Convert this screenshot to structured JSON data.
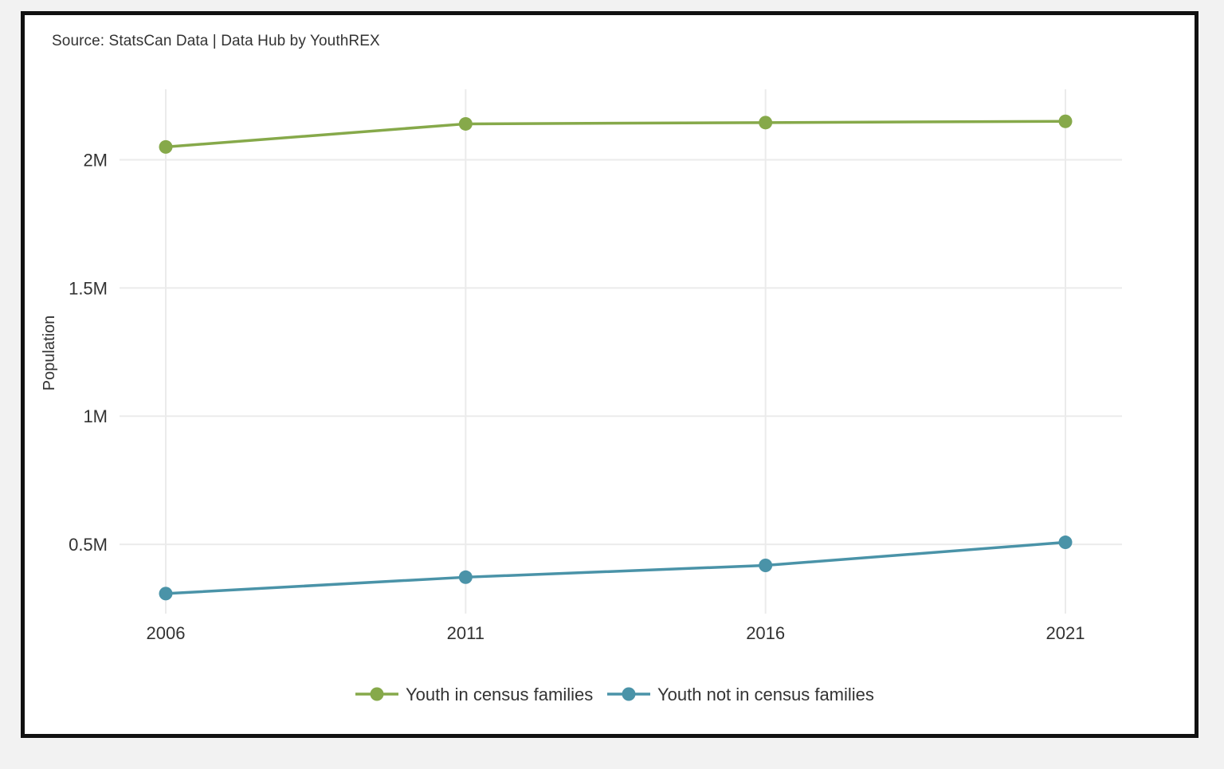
{
  "source_note": "Source: StatsCan Data | Data Hub by YouthREX",
  "chart_data": {
    "type": "line",
    "x": [
      "2006",
      "2011",
      "2016",
      "2021"
    ],
    "series": [
      {
        "name": "Youth in census families",
        "color": "#86a94a",
        "values": [
          2050000,
          2140000,
          2145000,
          2150000
        ]
      },
      {
        "name": "Youth not in census families",
        "color": "#4a93a8",
        "values": [
          308000,
          372000,
          418000,
          508000
        ]
      }
    ],
    "ylabel": "Population",
    "xlabel": "",
    "yticks": [
      500000,
      1000000,
      1500000,
      2000000
    ],
    "ytick_labels": [
      "0.5M",
      "1M",
      "1.5M",
      "2M"
    ],
    "ylim": [
      230000,
      2275000
    ],
    "grid": true,
    "legend_position": "bottom-center"
  }
}
